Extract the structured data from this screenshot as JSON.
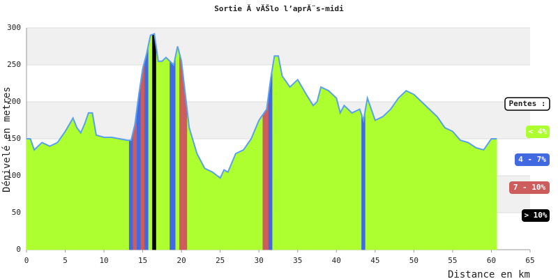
{
  "chart_data": {
    "type": "area",
    "title": "Sortie Ă  vĂŠlo l’aprĂ¨s-midi",
    "xlabel": "Distance en km",
    "ylabel": "Dénivelé en metres",
    "legend_title": "Pentes :",
    "legend": [
      {
        "label": "< 4%",
        "color": "#adff2f"
      },
      {
        "label": "4 - 7%",
        "color": "#4169e1"
      },
      {
        "label": "7 - 10%",
        "color": "#cd5c5c"
      },
      {
        "label": "> 10%",
        "color": "#000000"
      }
    ],
    "line_color": "#5aa0ee",
    "x": [
      0,
      0.5,
      1,
      2,
      3,
      4,
      5,
      6,
      6.5,
      7,
      7.5,
      8,
      8.5,
      9,
      10,
      11,
      12,
      13,
      13.5,
      14,
      14.5,
      15,
      15.5,
      16,
      16.5,
      17,
      17.5,
      18,
      19,
      19.5,
      20,
      20.5,
      21,
      22,
      23,
      24,
      25,
      25.5,
      26,
      27,
      28,
      29,
      30,
      31,
      31.5,
      32,
      32.5,
      33,
      34,
      35,
      36,
      37,
      37.5,
      38,
      39,
      40,
      40.5,
      41,
      42,
      43,
      43.5,
      44,
      45,
      46,
      47,
      48,
      49,
      50,
      51,
      52,
      53,
      54,
      55,
      56,
      57,
      58,
      59,
      60,
      60.7
    ],
    "values": [
      150,
      150,
      135,
      145,
      140,
      145,
      160,
      178,
      165,
      158,
      170,
      185,
      185,
      155,
      152,
      152,
      150,
      148,
      148,
      170,
      210,
      245,
      265,
      290,
      292,
      255,
      255,
      260,
      250,
      275,
      255,
      210,
      165,
      130,
      110,
      105,
      97,
      108,
      105,
      130,
      135,
      150,
      175,
      190,
      230,
      262,
      262,
      235,
      220,
      230,
      212,
      195,
      200,
      220,
      215,
      205,
      185,
      195,
      185,
      190,
      175,
      205,
      175,
      180,
      190,
      205,
      215,
      210,
      200,
      190,
      180,
      165,
      160,
      148,
      145,
      138,
      135,
      150,
      150
    ],
    "slope_class": [
      0,
      0,
      0,
      0,
      0,
      0,
      0,
      0,
      0,
      0,
      0,
      0,
      0,
      0,
      0,
      0,
      0,
      0,
      1,
      2,
      1,
      2,
      1,
      0,
      3,
      0,
      0,
      0,
      1,
      0,
      2,
      2,
      0,
      0,
      0,
      0,
      0,
      0,
      0,
      0,
      0,
      0,
      0,
      2,
      1,
      0,
      0,
      0,
      0,
      0,
      0,
      0,
      0,
      0,
      0,
      0,
      0,
      0,
      0,
      0,
      1,
      0,
      0,
      0,
      0,
      0,
      0,
      0,
      0,
      0,
      0,
      0,
      0,
      0,
      0,
      0,
      0,
      0,
      0
    ],
    "xlim": [
      0,
      65
    ],
    "xticks": [
      0,
      5,
      10,
      15,
      20,
      25,
      30,
      35,
      40,
      45,
      50,
      55,
      60,
      65
    ],
    "ylim": [
      0,
      300
    ],
    "yticks": [
      0,
      50,
      100,
      150,
      200,
      250,
      300
    ],
    "grid": true
  }
}
